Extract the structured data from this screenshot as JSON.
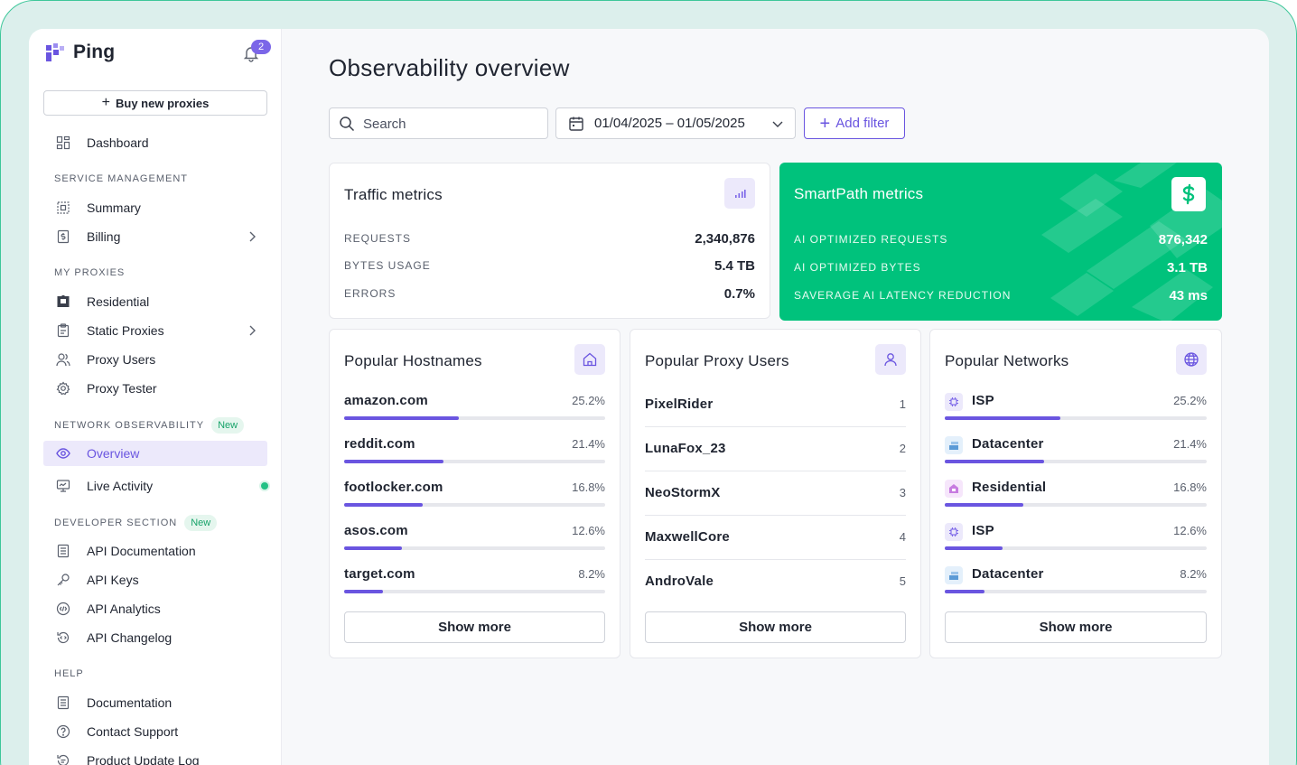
{
  "app": {
    "name": "Ping",
    "notifications": "2"
  },
  "sidebar": {
    "buy_label": "Buy new proxies",
    "dashboard": "Dashboard",
    "sections": {
      "service": "SERVICE MANAGEMENT",
      "proxies": "MY PROXIES",
      "network": "NETWORK OBSERVABILITY",
      "developer": "DEVELOPER SECTION",
      "help": "HELP"
    },
    "new_badge": "New",
    "items": {
      "summary": "Summary",
      "billing": "Billing",
      "residential": "Residential",
      "static_proxies": "Static Proxies",
      "proxy_users": "Proxy Users",
      "proxy_tester": "Proxy Tester",
      "overview": "Overview",
      "live_activity": "Live Activity",
      "api_docs": "API Documentation",
      "api_keys": "API Keys",
      "api_analytics": "API Analytics",
      "api_changelog": "API Changelog",
      "documentation": "Documentation",
      "contact_support": "Contact Support",
      "product_update_log": "Product Update Log"
    }
  },
  "main": {
    "title": "Observability overview",
    "search_placeholder": "Search",
    "date_range": "01/04/2025 – 01/05/2025",
    "add_filter": "Add filter"
  },
  "traffic": {
    "title": "Traffic metrics",
    "rows": [
      {
        "key": "REQUESTS",
        "value": "2,340,876"
      },
      {
        "key": "BYTES USAGE",
        "value": "5.4 TB"
      },
      {
        "key": "ERRORS",
        "value": "0.7%"
      }
    ]
  },
  "smartpath": {
    "title": "SmartPath metrics",
    "rows": [
      {
        "key": "AI OPTIMIZED REQUESTS",
        "value": "876,342"
      },
      {
        "key": "AI OPTIMIZED BYTES",
        "value": "3.1 TB"
      },
      {
        "key": "SAVERAGE AI LATENCY REDUCTION",
        "value": "43 ms"
      }
    ]
  },
  "hostnames": {
    "title": "Popular Hostnames",
    "rows": [
      {
        "name": "amazon.com",
        "pct": "25.2%",
        "fill": 0.44
      },
      {
        "name": "reddit.com",
        "pct": "21.4%",
        "fill": 0.38
      },
      {
        "name": "footlocker.com",
        "pct": "16.8%",
        "fill": 0.3
      },
      {
        "name": "asos.com",
        "pct": "12.6%",
        "fill": 0.22
      },
      {
        "name": "target.com",
        "pct": "8.2%",
        "fill": 0.15
      }
    ],
    "show_more": "Show more"
  },
  "proxy_users": {
    "title": "Popular Proxy Users",
    "rows": [
      {
        "name": "PixelRider",
        "rank": "1"
      },
      {
        "name": "LunaFox_23",
        "rank": "2"
      },
      {
        "name": "NeoStormX",
        "rank": "3"
      },
      {
        "name": "MaxwellCore",
        "rank": "4"
      },
      {
        "name": "AndroVale",
        "rank": "5"
      }
    ],
    "show_more": "Show more"
  },
  "networks": {
    "title": "Popular Networks",
    "rows": [
      {
        "name": "ISP",
        "pct": "25.2%",
        "fill": 0.44,
        "icon": "chip-icon",
        "color": "#ece9fb"
      },
      {
        "name": "Datacenter",
        "pct": "21.4%",
        "fill": 0.38,
        "icon": "server-icon",
        "color": "#e4f0fb"
      },
      {
        "name": "Residential",
        "pct": "16.8%",
        "fill": 0.3,
        "icon": "home-icon",
        "color": "#f6e6fb"
      },
      {
        "name": "ISP",
        "pct": "12.6%",
        "fill": 0.22,
        "icon": "chip-icon",
        "color": "#ece9fb"
      },
      {
        "name": "Datacenter",
        "pct": "8.2%",
        "fill": 0.15,
        "icon": "server-icon",
        "color": "#e4f0fb"
      }
    ],
    "show_more": "Show more"
  },
  "colors": {
    "accent": "#6a55e0",
    "green": "#00c27c"
  }
}
